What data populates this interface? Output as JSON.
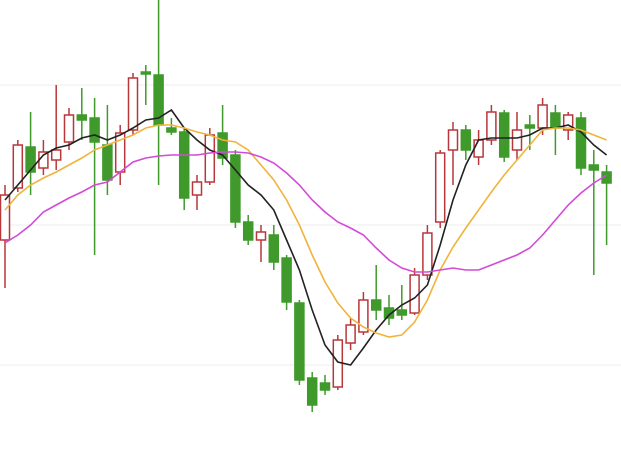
{
  "chart_data": {
    "type": "candlestick",
    "categories": [
      null,
      null,
      null,
      null,
      null,
      null,
      null,
      null,
      null,
      null,
      null,
      null,
      null,
      null,
      null,
      null,
      null,
      null,
      null,
      null,
      null,
      null,
      null,
      null,
      null,
      null,
      null,
      null,
      null,
      null,
      null,
      null,
      null,
      null,
      null,
      null,
      null,
      null,
      null,
      null,
      null,
      null,
      null,
      null,
      null,
      null,
      null,
      null
    ],
    "open": [
      226,
      278,
      319,
      298,
      306,
      324,
      351,
      348,
      321,
      294,
      336,
      394,
      391,
      338,
      334,
      271,
      284,
      333,
      311,
      244,
      226,
      231,
      208,
      163,
      88,
      83,
      79,
      123,
      134,
      166,
      158,
      156,
      153,
      191,
      244,
      316,
      336,
      309,
      326,
      353,
      316,
      341,
      338,
      353,
      336,
      348,
      301,
      294
    ],
    "high": [
      281,
      326,
      354,
      326,
      381,
      358,
      378,
      368,
      361,
      341,
      393,
      401,
      466,
      348,
      338,
      291,
      338,
      361,
      316,
      251,
      241,
      241,
      211,
      166,
      94,
      91,
      131,
      148,
      174,
      201,
      171,
      181,
      198,
      241,
      316,
      344,
      341,
      336,
      361,
      356,
      354,
      351,
      368,
      361,
      354,
      354,
      316,
      301
    ],
    "low": [
      178,
      274,
      271,
      291,
      296,
      316,
      326,
      211,
      271,
      281,
      331,
      361,
      281,
      331,
      256,
      256,
      281,
      301,
      238,
      221,
      204,
      196,
      156,
      81,
      54,
      71,
      76,
      116,
      131,
      146,
      141,
      146,
      151,
      186,
      238,
      281,
      306,
      301,
      321,
      304,
      306,
      316,
      331,
      311,
      326,
      291,
      191,
      221
    ],
    "close": [
      271,
      321,
      294,
      314,
      316,
      351,
      346,
      324,
      286,
      333,
      388,
      392,
      341,
      334,
      268,
      284,
      331,
      308,
      244,
      226,
      234,
      204,
      164,
      86,
      61,
      76,
      126,
      141,
      166,
      156,
      148,
      151,
      191,
      233,
      313,
      336,
      316,
      326,
      354,
      309,
      336,
      338,
      361,
      338,
      351,
      298,
      296,
      283
    ],
    "up_color": "#b8373a",
    "down_color": "#3f9a2b",
    "series": [
      {
        "color": "#222222",
        "values": [
          266,
          281,
          296,
          311,
          318,
          321,
          328,
          331,
          326,
          331,
          338,
          346,
          348,
          356,
          338,
          326,
          316,
          311,
          296,
          281,
          271,
          256,
          226,
          196,
          156,
          121,
          104,
          101,
          118,
          136,
          151,
          161,
          168,
          181,
          221,
          266,
          301,
          326,
          328,
          328,
          328,
          331,
          338,
          338,
          341,
          334,
          321,
          311
        ]
      },
      {
        "color": "#f0b43c",
        "values": [
          256,
          271,
          281,
          288,
          294,
          301,
          308,
          316,
          321,
          326,
          331,
          338,
          341,
          341,
          338,
          334,
          331,
          326,
          324,
          316,
          301,
          286,
          266,
          241,
          211,
          184,
          163,
          148,
          139,
          133,
          129,
          131,
          144,
          166,
          196,
          219,
          238,
          256,
          274,
          291,
          306,
          321,
          336,
          338,
          338,
          336,
          331,
          326
        ]
      },
      {
        "color": "#d24ad8",
        "values": [
          223,
          231,
          241,
          254,
          261,
          268,
          274,
          281,
          284,
          294,
          304,
          308,
          310,
          311,
          311,
          311,
          313,
          314,
          314,
          313,
          309,
          303,
          293,
          281,
          266,
          254,
          244,
          238,
          231,
          218,
          206,
          198,
          194,
          194,
          196,
          198,
          196,
          196,
          201,
          206,
          211,
          218,
          231,
          246,
          261,
          273,
          283,
          291
        ]
      }
    ],
    "ylim": [
      0,
      466
    ]
  }
}
